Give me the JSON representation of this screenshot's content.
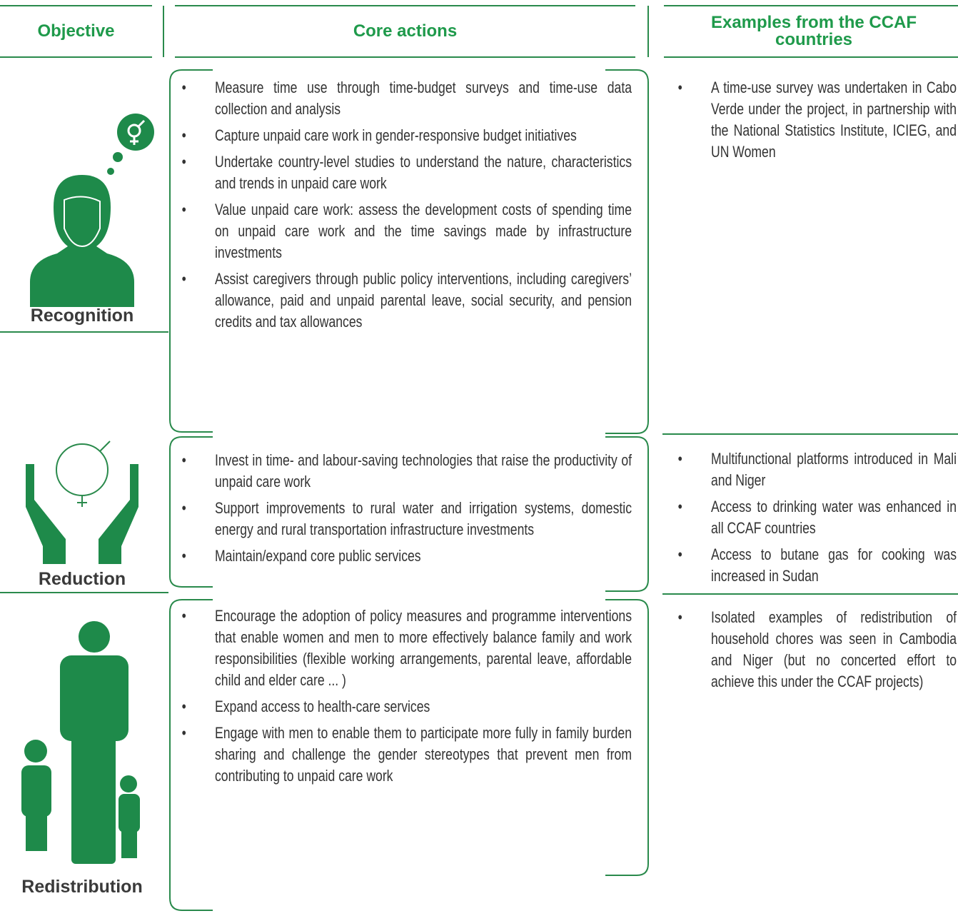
{
  "header": {
    "objective": "Objective",
    "core_actions": "Core actions",
    "examples": "Examples from the CCAF countries"
  },
  "rows": [
    {
      "objective": "Recognition",
      "core_actions": [
        "Measure time use through time-budget surveys and time-use data collection and analysis",
        "Capture unpaid care work in gender-responsive budget initiatives",
        "Undertake country-level studies to understand the nature, characteristics and trends in unpaid care work",
        "Value unpaid care work: assess the development costs of spending time on unpaid care work and the time savings made by infrastructure investments",
        "Assist caregivers through public policy interventions, including caregivers’ allowance, paid and unpaid parental leave, social security, and pension credits and tax allowances"
      ],
      "examples": [
        "A time-use survey was undertaken in Cabo Verde under the project, in partnership with the National Statistics Institute, ICIEG, and UN Women"
      ]
    },
    {
      "objective": "Reduction",
      "core_actions": [
        "Invest in time- and labour-saving technologies that raise the productivity of unpaid care work",
        "Support improvements to rural water and irrigation systems, domestic energy and rural transportation infrastructure investments",
        "Maintain/expand core public services"
      ],
      "examples": [
        "Multifunctional platforms introduced in Mali and Niger",
        "Access to drinking water was enhanced in all CCAF countries",
        "Access to butane gas for cooking was increased in Sudan"
      ]
    },
    {
      "objective": "Redistribution",
      "core_actions": [
        "Encourage the adoption of policy measures and programme interventions that enable women and men to more effectively balance family and work responsibilities (flexible working arrangements, parental leave, affordable child and elder care ... )",
        "Expand access to health-care services",
        "Engage with men to enable them to participate more fully in family burden sharing and challenge the gender stereotypes that prevent men from contributing to unpaid care work"
      ],
      "examples": [
        "Isolated examples of redistribution of household chores was seen in Cambodia and Niger (but no concerted effort to achieve this under the CCAF projects)"
      ]
    }
  ]
}
